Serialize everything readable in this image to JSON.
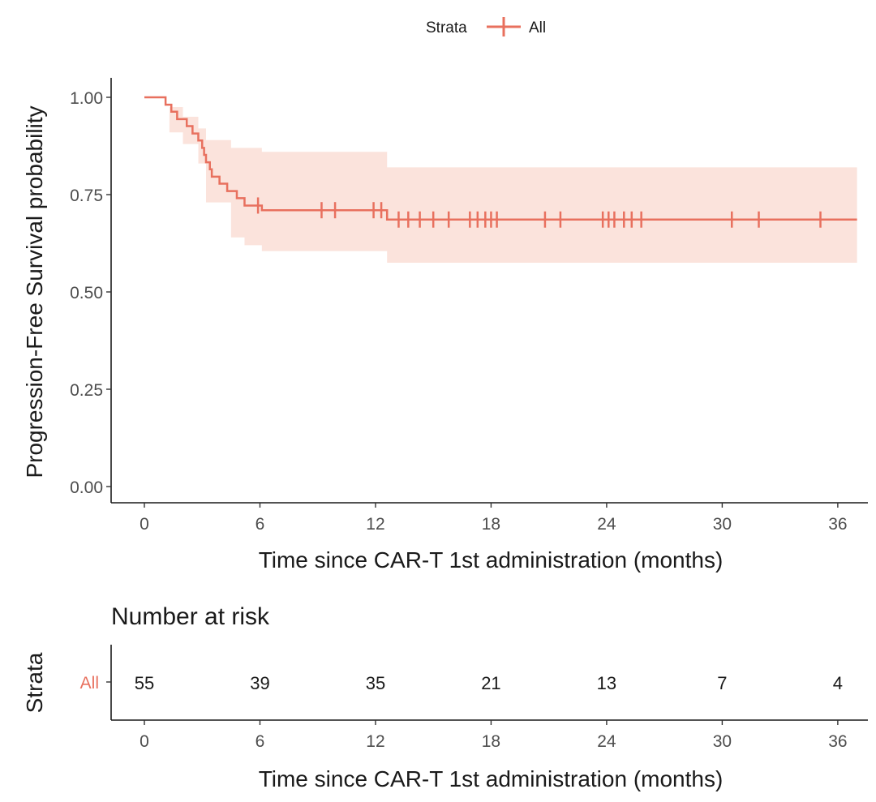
{
  "chart_data": [
    {
      "type": "line",
      "subtype": "kaplan-meier",
      "title": "",
      "xlabel": "Time since CAR-T 1st administration (months)",
      "ylabel": "Progression-Free Survival probability",
      "xlim": [
        0,
        37
      ],
      "ylim": [
        0,
        1.0
      ],
      "x_ticks": [
        0,
        6,
        12,
        18,
        24,
        30,
        36
      ],
      "y_ticks": [
        0.0,
        0.25,
        0.5,
        0.75,
        1.0
      ],
      "y_tick_labels": [
        "0.00",
        "0.25",
        "0.50",
        "0.75",
        "1.00"
      ],
      "legend": {
        "title": "Strata",
        "position": "top",
        "entries": [
          "All"
        ]
      },
      "series": [
        {
          "name": "All",
          "color": "#e8705e",
          "band_color": "#fbe3dc",
          "steps": [
            [
              0,
              1.0
            ],
            [
              1.1,
              0.981
            ],
            [
              1.4,
              0.963
            ],
            [
              1.7,
              0.944
            ],
            [
              2.2,
              0.926
            ],
            [
              2.5,
              0.907
            ],
            [
              2.8,
              0.889
            ],
            [
              3.0,
              0.87
            ],
            [
              3.1,
              0.852
            ],
            [
              3.2,
              0.833
            ],
            [
              3.4,
              0.815
            ],
            [
              3.5,
              0.796
            ],
            [
              3.9,
              0.778
            ],
            [
              4.3,
              0.759
            ],
            [
              4.8,
              0.741
            ],
            [
              5.2,
              0.722
            ],
            [
              6.1,
              0.71
            ],
            [
              12.6,
              0.686
            ]
          ],
          "end_x": 37,
          "ci_upper": [
            [
              0,
              1.0
            ],
            [
              1.3,
              0.975
            ],
            [
              2.0,
              0.95
            ],
            [
              2.8,
              0.92
            ],
            [
              3.2,
              0.89
            ],
            [
              4.5,
              0.87
            ],
            [
              6.1,
              0.86
            ],
            [
              12.6,
              0.82
            ],
            [
              37,
              0.82
            ]
          ],
          "ci_lower": [
            [
              0,
              1.0
            ],
            [
              1.3,
              0.91
            ],
            [
              2.0,
              0.88
            ],
            [
              2.8,
              0.83
            ],
            [
              3.2,
              0.73
            ],
            [
              4.5,
              0.64
            ],
            [
              5.2,
              0.62
            ],
            [
              6.1,
              0.605
            ],
            [
              12.6,
              0.575
            ],
            [
              37,
              0.575
            ]
          ],
          "censor_times": [
            5.9,
            9.2,
            9.9,
            11.9,
            12.3,
            13.2,
            13.7,
            14.3,
            15.0,
            15.8,
            16.9,
            17.3,
            17.7,
            18.0,
            18.3,
            20.8,
            21.6,
            23.8,
            24.1,
            24.4,
            24.9,
            25.3,
            25.8,
            30.5,
            31.9,
            35.1
          ]
        }
      ]
    },
    {
      "type": "table",
      "title": "Number at risk",
      "ylabel": "Strata",
      "xlabel": "Time since CAR-T 1st administration (months)",
      "x_ticks": [
        0,
        6,
        12,
        18,
        24,
        30,
        36
      ],
      "row_label": "All",
      "times": [
        0,
        6,
        12,
        18,
        24,
        30,
        36
      ],
      "values": [
        55,
        39,
        35,
        21,
        13,
        7,
        4
      ]
    }
  ]
}
